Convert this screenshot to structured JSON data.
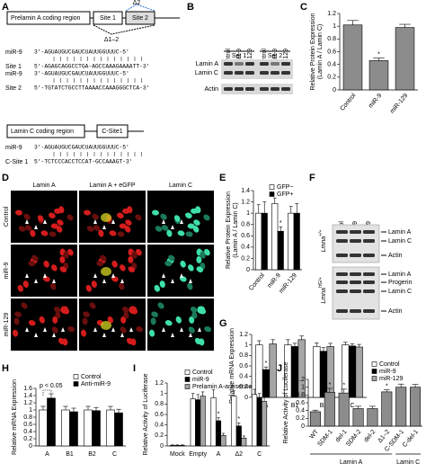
{
  "panel_a": {
    "panel": "A",
    "prelamin": "Prelamin A coding region",
    "site1": "Site 1",
    "site2": "Site 2",
    "d2": "Δ2",
    "d12": "Δ1–2",
    "lamin_c": "Lamin C coding region",
    "csite": "C-Site1",
    "alignments": [
      {
        "label": "miR-9",
        "seq": "3'-AGUAUGUCGAUCUAUUGGUUUC-5'"
      },
      {
        "label": "Site 1",
        "seq": "5'-AGAGCAGGCCTGA-AGCCAAAGAAAATT-3'"
      },
      {
        "label": "miR-9",
        "seq": "3'-AGUAUGUCGAUCUAUUGGUUUC-5'"
      },
      {
        "label": "Site 2",
        "seq": "5'-TGTATCTGCCTTAAAACCAAAGGGCTCA-3'"
      }
    ],
    "alignments_c": [
      {
        "label": "miR-9",
        "seq": "3'-AGUAUGUCGAUCUAUUGGUUUC-5'"
      },
      {
        "label": "C-Site 1",
        "seq": "5'-TCTCCCACCTCCAT-GCCAAAGT-3'"
      }
    ]
  },
  "panel_b": {
    "panel": "B",
    "lanes": [
      "Control",
      "miR-9",
      "miR-129",
      "Control",
      "miR-9",
      "miR-129"
    ],
    "sets": [
      "Set 1",
      "Set 2"
    ],
    "rows": [
      "Lamin A",
      "Lamin C",
      "Actin"
    ]
  },
  "panel_d": {
    "panel": "D",
    "columns": [
      "Lamin A",
      "Lamin A + eGFP",
      "Lamin C"
    ],
    "rows": [
      "Control",
      "miR-9",
      "miR-129"
    ]
  },
  "panel_f": {
    "panel": "F",
    "lanes": [
      "Control",
      "miR-9",
      "miR-129"
    ],
    "wt": {
      "gene": "Lmna",
      "genotype": "+/+"
    },
    "hg": {
      "gene": "Lmna",
      "genotype": "HG/+"
    },
    "wt_rows": [
      "Lamin A",
      "Lamin C",
      "Actin"
    ],
    "hg_rows": [
      "Lamin A",
      "Progerin",
      "Lamin C",
      "Actin"
    ]
  },
  "chart_data": [
    {
      "type": "bar",
      "panel": "C",
      "ylabel": [
        "Relative Protein Expression",
        "(Lamin A / Lamin C)"
      ],
      "categories": [
        "Control",
        "miR-9",
        "miR-129"
      ],
      "values": [
        1.02,
        0.46,
        0.98
      ],
      "errors": [
        0.07,
        0.04,
        0.05
      ],
      "annotations": [
        null,
        "*",
        null
      ],
      "color": "#8c8c8c",
      "ylim": [
        0,
        1.2
      ],
      "yticks": [
        0,
        0.2,
        0.4,
        0.6,
        0.8,
        1,
        1.2
      ]
    },
    {
      "type": "bar",
      "panel": "E",
      "ylabel": [
        "Relative Protein Expression",
        "(Lamin A / Lamin C)"
      ],
      "categories": [
        "Control",
        "miR-9",
        "miR-129"
      ],
      "series": [
        {
          "name": "GFP−",
          "color": "#ffffff",
          "values": [
            1.0,
            1.17,
            1.0
          ],
          "errors": [
            0.15,
            0.1,
            0.12
          ],
          "annotations": [
            null,
            null,
            null
          ]
        },
        {
          "name": "GFP+",
          "color": "#000000",
          "values": [
            1.0,
            0.68,
            1.0
          ],
          "errors": [
            0.2,
            0.08,
            0.17
          ],
          "annotations": [
            null,
            "*",
            null
          ]
        }
      ],
      "ylim": [
        0,
        1.4
      ],
      "yticks": [
        0,
        0.2,
        0.4,
        0.6,
        0.8,
        1,
        1.2,
        1.4
      ]
    },
    {
      "type": "bar",
      "panel": "G",
      "ylabel": [
        "Relative mRNA Expression"
      ],
      "categories": [
        "A",
        "B1",
        "B2",
        "C"
      ],
      "series": [
        {
          "name": "Control",
          "color": "#ffffff",
          "values": [
            1.0,
            1.0,
            0.97,
            1.0
          ],
          "errors": [
            0.08,
            0.1,
            0.07,
            0.05
          ],
          "annotations": [
            null,
            null,
            null,
            null
          ]
        },
        {
          "name": "miR-9",
          "color": "#000000",
          "values": [
            0.53,
            0.97,
            0.88,
            0.98
          ],
          "errors": [
            0.05,
            0.06,
            0.07,
            0.04
          ],
          "annotations": [
            "*",
            null,
            null,
            null
          ]
        },
        {
          "name": "miR-129",
          "color": "#a6a6a6",
          "values": [
            1.02,
            1.1,
            0.97,
            0.96
          ],
          "errors": [
            0.08,
            0.07,
            0.06,
            0.05
          ],
          "annotations": [
            null,
            null,
            null,
            null
          ]
        }
      ],
      "ylim": [
        0,
        1.2
      ],
      "yticks": [
        0,
        0.2,
        0.4,
        0.6,
        0.8,
        1,
        1.2
      ]
    },
    {
      "type": "bar",
      "panel": "H",
      "ylabel": [
        "Relative mRNA Expression"
      ],
      "annotation": "p < 0.05",
      "categories": [
        "A",
        "B1",
        "B2",
        "C"
      ],
      "series": [
        {
          "name": "Control",
          "color": "#ffffff",
          "values": [
            1.0,
            1.0,
            1.0,
            1.0
          ],
          "errors": [
            0.1,
            0.1,
            0.1,
            0.1
          ],
          "annotations": [
            null,
            null,
            null,
            null
          ]
        },
        {
          "name": "Anti-miR-9",
          "color": "#000000",
          "values": [
            1.33,
            0.95,
            0.98,
            0.92
          ],
          "errors": [
            0.12,
            0.1,
            0.09,
            0.1
          ],
          "annotations": [
            null,
            null,
            null,
            null
          ]
        }
      ],
      "ylim": [
        0,
        1.6
      ],
      "yticks": [
        0,
        0.2,
        0.4,
        0.6,
        0.8,
        1,
        1.2,
        1.4,
        1.6
      ]
    },
    {
      "type": "bar",
      "panel": "I",
      "ylabel": [
        "Relative Activity of Luciferase"
      ],
      "categories": [
        "Mock",
        "Empty",
        "A",
        "Δ2",
        "C"
      ],
      "series": [
        {
          "name": "Control",
          "color": "#ffffff",
          "values": [
            0.01,
            0.9,
            0.92,
            0.95,
            0.98
          ],
          "errors": [
            0.01,
            0.1,
            0.15,
            0.1,
            0.1
          ],
          "annotations": [
            null,
            null,
            null,
            null,
            null
          ]
        },
        {
          "name": "miR-9",
          "color": "#000000",
          "values": [
            0.01,
            0.88,
            0.48,
            0.38,
            0.92
          ],
          "errors": [
            0.01,
            0.1,
            0.06,
            0.06,
            0.08
          ],
          "annotations": [
            null,
            null,
            "*",
            "*",
            null
          ]
        },
        {
          "name": "Prelamin A-antisense",
          "color": "#a6a6a6",
          "values": [
            0.01,
            0.95,
            0.2,
            0.15,
            0.85
          ],
          "errors": [
            0.01,
            0.08,
            0.04,
            0.04,
            0.08
          ],
          "annotations": [
            null,
            null,
            null,
            null,
            null
          ]
        }
      ],
      "ylim": [
        0,
        1.2
      ],
      "yticks": [
        0,
        0.2,
        0.4,
        0.6,
        0.8,
        1,
        1.2
      ]
    },
    {
      "type": "bar",
      "panel": "J",
      "ylabel": [
        "Relative Activity of Luciferase"
      ],
      "categories": [
        "WT",
        "SDM-1",
        "del-1",
        "SDM-2",
        "del-2",
        "Δ1–2",
        "C-SDM-1",
        "C-del-1"
      ],
      "values": [
        0.37,
        0.87,
        0.85,
        0.45,
        0.45,
        0.88,
        1.0,
        1.0
      ],
      "errors": [
        0.04,
        0.1,
        0.1,
        0.06,
        0.06,
        0.05,
        0.08,
        0.07
      ],
      "annotations": [
        null,
        "*",
        "*",
        null,
        null,
        "*",
        null,
        null
      ],
      "color": "#8c8c8c",
      "groups": [
        "Lamin A",
        "Lamin C"
      ],
      "ylim": [
        0,
        1.2
      ],
      "yticks": [
        0,
        0.2,
        0.4,
        0.6,
        0.8,
        1,
        1.2
      ]
    }
  ]
}
